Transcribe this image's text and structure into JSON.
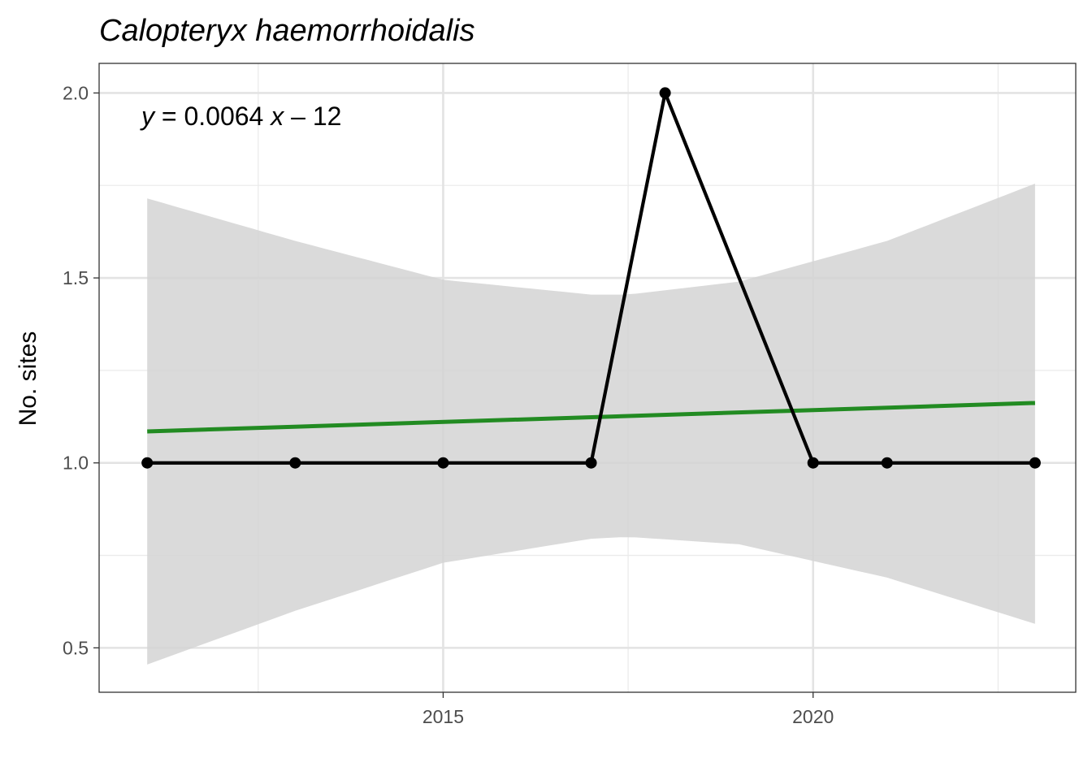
{
  "chart_data": {
    "type": "line",
    "title": "Calopteryx haemorrhoidalis",
    "xlabel": "",
    "ylabel": "No. sites",
    "xlim": [
      2010.35,
      2023.55
    ],
    "ylim": [
      0.38,
      2.08
    ],
    "x_major_ticks": [
      2015,
      2020
    ],
    "x_minor_ticks": [
      2012.5,
      2017.5,
      2022.5
    ],
    "y_major_ticks": [
      0.5,
      1.0,
      1.5,
      2.0
    ],
    "y_tick_labels": [
      "0.5",
      "1.0",
      "1.5",
      "2.0"
    ],
    "y_minor_ticks": [
      0.75,
      1.25,
      1.75
    ],
    "grid": true,
    "series": [
      {
        "x": [
          2011,
          2013,
          2015,
          2017,
          2018,
          2020,
          2021,
          2023
        ],
        "y": [
          1,
          1,
          1,
          1,
          2,
          1,
          1,
          1
        ],
        "color": "#000000"
      }
    ],
    "trend": {
      "equation": {
        "y": "y",
        "eq1": " = 0.0064 ",
        "x": "x",
        "eq2": " – 12"
      },
      "x_range": [
        2011,
        2023
      ],
      "y_start": 1.085,
      "y_end": 1.162,
      "color": "#228B22",
      "confidence_band": {
        "color": "#d3d3d3",
        "x": [
          2011,
          2013,
          2015,
          2017,
          2017.5,
          2019,
          2021,
          2023
        ],
        "lower": [
          0.455,
          0.6,
          0.73,
          0.795,
          0.8,
          0.78,
          0.69,
          0.565
        ],
        "upper": [
          1.715,
          1.6,
          1.495,
          1.455,
          1.455,
          1.49,
          1.6,
          1.755
        ]
      }
    }
  }
}
